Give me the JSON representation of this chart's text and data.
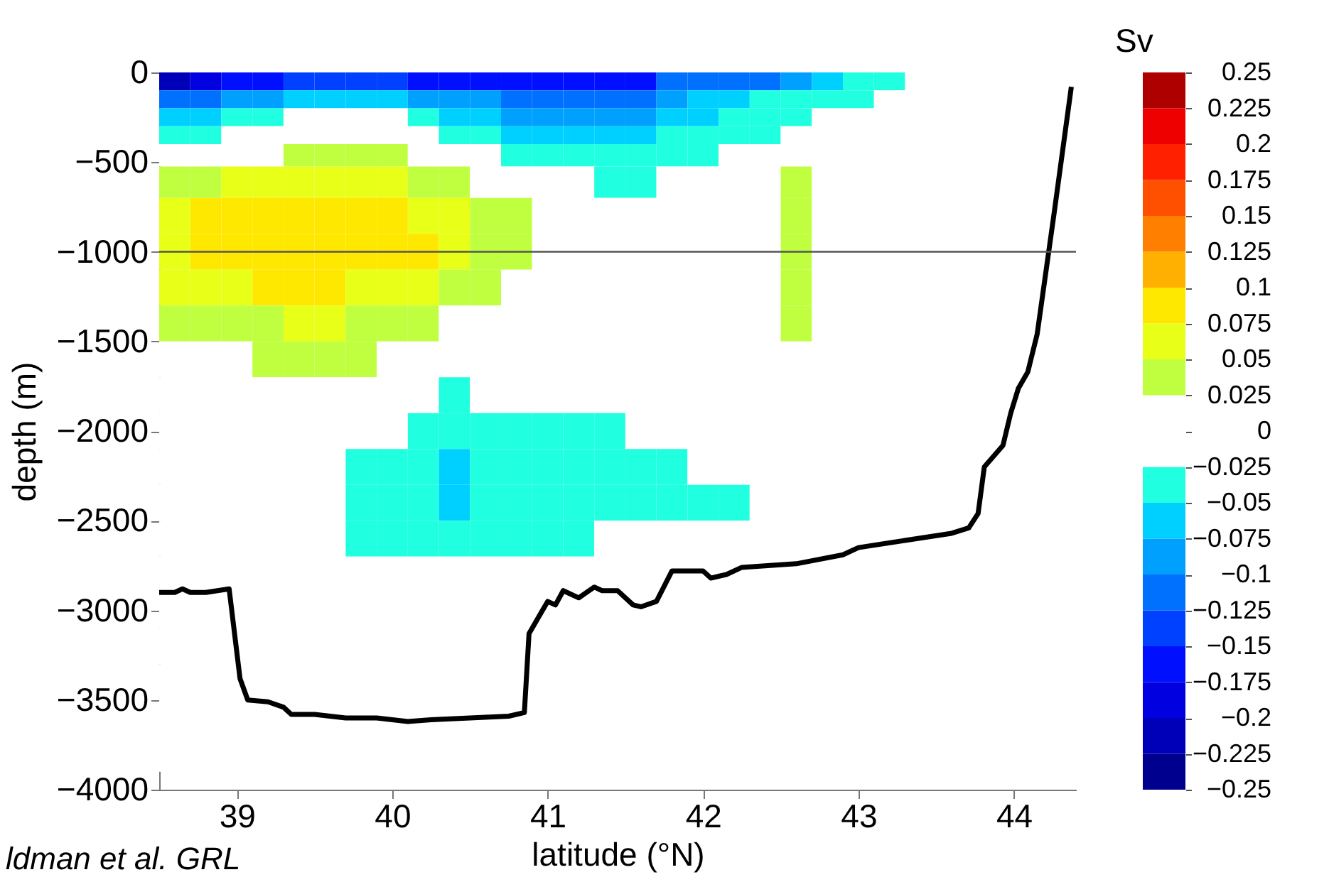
{
  "chart_data": {
    "type": "heatmap",
    "xlabel": "latitude (°N)",
    "ylabel": "depth (m)",
    "clabel": "Sv",
    "xlim": [
      38.5,
      44.4
    ],
    "ylim": [
      -4000,
      0
    ],
    "xticks": [
      39,
      40,
      41,
      42,
      43,
      44
    ],
    "yticks": [
      -4000,
      -3500,
      -3000,
      -2500,
      -2000,
      -1500,
      -1000,
      -500,
      0
    ],
    "grid": false,
    "x": [
      38.6,
      38.8,
      39.0,
      39.2,
      39.4,
      39.6,
      39.8,
      40.0,
      40.2,
      40.4,
      40.6,
      40.8,
      41.0,
      41.2,
      41.4,
      41.6,
      41.8,
      42.0,
      42.2,
      42.4,
      42.6,
      42.8,
      43.0,
      43.2,
      43.4,
      43.6,
      43.8,
      44.0,
      44.2,
      44.4
    ],
    "y": [
      -50,
      -150,
      -250,
      -350,
      -450,
      -600,
      -800,
      -1000,
      -1200,
      -1400,
      -1600,
      -1800,
      -2000,
      -2200,
      -2400,
      -2600,
      -2800,
      -3000,
      -3200,
      -3400,
      -3600,
      -3800
    ],
    "cells": [
      [
        -0.21,
        -0.19,
        -0.16,
        -0.16,
        -0.14,
        -0.14,
        -0.14,
        -0.14,
        -0.16,
        -0.16,
        -0.16,
        -0.16,
        -0.16,
        -0.16,
        -0.16,
        -0.16,
        -0.11,
        -0.11,
        -0.11,
        -0.11,
        -0.09,
        -0.06,
        -0.04,
        -0.04,
        0,
        0,
        0,
        0,
        0,
        0
      ],
      [
        -0.11,
        -0.11,
        -0.09,
        -0.09,
        -0.06,
        -0.06,
        -0.06,
        -0.06,
        -0.09,
        -0.09,
        -0.09,
        -0.11,
        -0.11,
        -0.11,
        -0.11,
        -0.11,
        -0.09,
        -0.06,
        -0.06,
        -0.04,
        -0.04,
        -0.04,
        -0.04,
        0,
        0,
        0,
        0,
        0,
        0,
        0
      ],
      [
        -0.06,
        -0.06,
        -0.04,
        -0.04,
        0,
        0,
        0,
        0,
        -0.04,
        -0.06,
        -0.06,
        -0.09,
        -0.09,
        -0.09,
        -0.09,
        -0.09,
        -0.06,
        -0.06,
        -0.04,
        -0.04,
        -0.04,
        0,
        0,
        0,
        0,
        0,
        0,
        0,
        0,
        0
      ],
      [
        -0.04,
        -0.04,
        0,
        0,
        0,
        0,
        0,
        0,
        0,
        -0.04,
        -0.04,
        -0.06,
        -0.06,
        -0.06,
        -0.06,
        -0.06,
        -0.04,
        -0.04,
        -0.04,
        -0.04,
        0,
        0,
        0,
        0,
        0,
        0,
        0,
        0,
        0,
        0
      ],
      [
        0,
        0,
        0,
        0,
        0.04,
        0.04,
        0.04,
        0.04,
        0,
        0,
        0,
        -0.04,
        -0.04,
        -0.04,
        -0.04,
        -0.04,
        -0.04,
        -0.04,
        0,
        0,
        0,
        0,
        0,
        0,
        0,
        0,
        0,
        0,
        0,
        0
      ],
      [
        0.04,
        0.04,
        0.06,
        0.06,
        0.06,
        0.06,
        0.06,
        0.06,
        0.04,
        0.04,
        0,
        0,
        0,
        0,
        -0.04,
        -0.04,
        0,
        0,
        0,
        0,
        0.04,
        0,
        0,
        0,
        0,
        0,
        0,
        0,
        0,
        0
      ],
      [
        0.06,
        0.09,
        0.09,
        0.09,
        0.09,
        0.09,
        0.09,
        0.09,
        0.06,
        0.06,
        0.04,
        0.04,
        0,
        0,
        0,
        0,
        0,
        0,
        0,
        0,
        0.04,
        0,
        0,
        0,
        0,
        0,
        0,
        0,
        0,
        0
      ],
      [
        0.06,
        0.09,
        0.09,
        0.09,
        0.09,
        0.09,
        0.09,
        0.09,
        0.09,
        0.06,
        0.04,
        0.04,
        0,
        0,
        0,
        0,
        0,
        0,
        0,
        0,
        0.04,
        0,
        0,
        0,
        0,
        0,
        0,
        0,
        0,
        0
      ],
      [
        0.06,
        0.06,
        0.06,
        0.09,
        0.09,
        0.09,
        0.06,
        0.06,
        0.06,
        0.04,
        0.04,
        0,
        0,
        0,
        0,
        0,
        0,
        0,
        0,
        0,
        0.04,
        0,
        0,
        0,
        0,
        0,
        0,
        0,
        0,
        0
      ],
      [
        0.04,
        0.04,
        0.04,
        0.04,
        0.06,
        0.06,
        0.04,
        0.04,
        0.04,
        0,
        0,
        0,
        0,
        0,
        0,
        0,
        0,
        0,
        0,
        0,
        0.04,
        0,
        0,
        0,
        0,
        0,
        0,
        0,
        0,
        0
      ],
      [
        0,
        0,
        0,
        0.04,
        0.04,
        0.04,
        0.04,
        0,
        0,
        0,
        0,
        0,
        0,
        0,
        0,
        0,
        0,
        0,
        0,
        0,
        0,
        0,
        0,
        0,
        0,
        0,
        0,
        0,
        0,
        0
      ],
      [
        0,
        0,
        0,
        0,
        0,
        0,
        0,
        0,
        0,
        -0.04,
        0,
        0,
        0,
        0,
        0,
        0,
        0,
        0,
        0,
        0,
        0,
        0,
        0,
        0,
        0,
        0,
        0,
        0,
        0,
        0
      ],
      [
        0,
        0,
        0,
        0,
        0,
        0,
        0,
        0,
        -0.04,
        -0.04,
        -0.04,
        -0.04,
        -0.04,
        -0.04,
        -0.04,
        0,
        0,
        0,
        0,
        0,
        0,
        0,
        0,
        0,
        0,
        0,
        0,
        0,
        0,
        0
      ],
      [
        0,
        0,
        0,
        0,
        0,
        0,
        -0.04,
        -0.04,
        -0.04,
        -0.06,
        -0.04,
        -0.04,
        -0.04,
        -0.04,
        -0.04,
        -0.04,
        -0.04,
        0,
        0,
        0,
        0,
        0,
        0,
        0,
        0,
        0,
        0,
        0,
        0,
        0
      ],
      [
        0,
        0,
        0,
        0,
        0,
        0,
        -0.04,
        -0.04,
        -0.04,
        -0.06,
        -0.04,
        -0.04,
        -0.04,
        -0.04,
        -0.04,
        -0.04,
        -0.04,
        -0.04,
        -0.04,
        0,
        0,
        0,
        0,
        0,
        0,
        0,
        0,
        0,
        0,
        0
      ],
      [
        0,
        0,
        0,
        0,
        0,
        0,
        -0.04,
        -0.04,
        -0.04,
        -0.04,
        -0.04,
        -0.04,
        -0.04,
        -0.04,
        0,
        0,
        0,
        0,
        0,
        0,
        0,
        0,
        0,
        0,
        0,
        0,
        0,
        0,
        0,
        0
      ],
      [
        0,
        0,
        0,
        0,
        0,
        0,
        0,
        0,
        0,
        0,
        0,
        0,
        0,
        0,
        0,
        0,
        0,
        0,
        0,
        0,
        0,
        0,
        0,
        0,
        0,
        0,
        0,
        0,
        0,
        0
      ],
      [
        0,
        0,
        0,
        0,
        0,
        0,
        0,
        0,
        0,
        0,
        0,
        0,
        0,
        0,
        0,
        0,
        0,
        0,
        0,
        0,
        0,
        0,
        0,
        0,
        0,
        0,
        0,
        0,
        0,
        0
      ],
      [
        0,
        0,
        0,
        0,
        0,
        0,
        0,
        0,
        0,
        0,
        0,
        0,
        0,
        0,
        0,
        0,
        0,
        0,
        0,
        0,
        0,
        0,
        0,
        0,
        0,
        0,
        0,
        0,
        0,
        0
      ],
      [
        0,
        0,
        0,
        0,
        0,
        0,
        0,
        0,
        0,
        0,
        0,
        0,
        0,
        0,
        0,
        0,
        0,
        0,
        0,
        0,
        0,
        0,
        0,
        0,
        0,
        0,
        0,
        0,
        0,
        0
      ],
      [
        0,
        0,
        0,
        0,
        0,
        0,
        0,
        0,
        0,
        0,
        0,
        0,
        0,
        0,
        0,
        0,
        0,
        0,
        0,
        0,
        0,
        0,
        0,
        0,
        0,
        0,
        0,
        0,
        0,
        0
      ],
      [
        0,
        0,
        0,
        0,
        0,
        0,
        0,
        0,
        0,
        0,
        0,
        0,
        0,
        0,
        0,
        0,
        0,
        0,
        0,
        0,
        0,
        0,
        0,
        0,
        0,
        0,
        0,
        0,
        0,
        0
      ]
    ],
    "clim": [
      -0.25,
      0.25
    ],
    "cticks": [
      -0.25,
      -0.225,
      -0.2,
      -0.175,
      -0.15,
      -0.125,
      -0.1,
      -0.075,
      -0.05,
      -0.025,
      0,
      0.025,
      0.05,
      0.075,
      0.1,
      0.125,
      0.15,
      0.175,
      0.2,
      0.225,
      0.25
    ],
    "colors": [
      "#00008f",
      "#0000b8",
      "#0000e0",
      "#0010ff",
      "#0040ff",
      "#0070ff",
      "#00a0ff",
      "#00d0ff",
      "#20ffdf",
      "#ffffff",
      "#ffffff",
      "#bfff40",
      "#e8ff18",
      "#ffe800",
      "#ffb000",
      "#ff8000",
      "#ff5000",
      "#ff2000",
      "#ef0000",
      "#af0000"
    ],
    "ref_lines": [
      {
        "axis": "y",
        "value": -1000,
        "color": "#555555"
      }
    ],
    "series": [
      {
        "type": "line",
        "color": "#000000",
        "x": [
          38.5,
          38.6,
          38.65,
          38.7,
          38.8,
          38.95,
          39.02,
          39.07,
          39.2,
          39.3,
          39.35,
          39.5,
          39.7,
          39.9,
          40.1,
          40.25,
          40.5,
          40.75,
          40.85,
          40.88,
          41.0,
          41.05,
          41.1,
          41.2,
          41.3,
          41.35,
          41.45,
          41.55,
          41.6,
          41.7,
          41.8,
          42.0,
          42.05,
          42.1,
          42.15,
          42.25,
          42.6,
          42.9,
          43.0,
          43.3,
          43.6,
          43.71,
          43.77,
          43.81,
          43.93,
          43.98,
          44.03,
          44.09,
          44.15,
          44.26,
          44.37
        ],
        "values": [
          -2900,
          -2900,
          -2880,
          -2900,
          -2900,
          -2880,
          -3380,
          -3500,
          -3510,
          -3540,
          -3580,
          -3580,
          -3600,
          -3600,
          -3620,
          -3610,
          -3600,
          -3590,
          -3570,
          -3130,
          -2950,
          -2970,
          -2890,
          -2930,
          -2870,
          -2890,
          -2890,
          -2970,
          -2980,
          -2950,
          -2780,
          -2780,
          -2820,
          -2810,
          -2800,
          -2760,
          -2740,
          -2690,
          -2650,
          -2610,
          -2570,
          -2540,
          -2460,
          -2200,
          -2080,
          -1900,
          -1760,
          -1670,
          -1460,
          -780,
          -80
        ]
      }
    ],
    "annotations": [
      "ldman et al. GRL"
    ]
  }
}
